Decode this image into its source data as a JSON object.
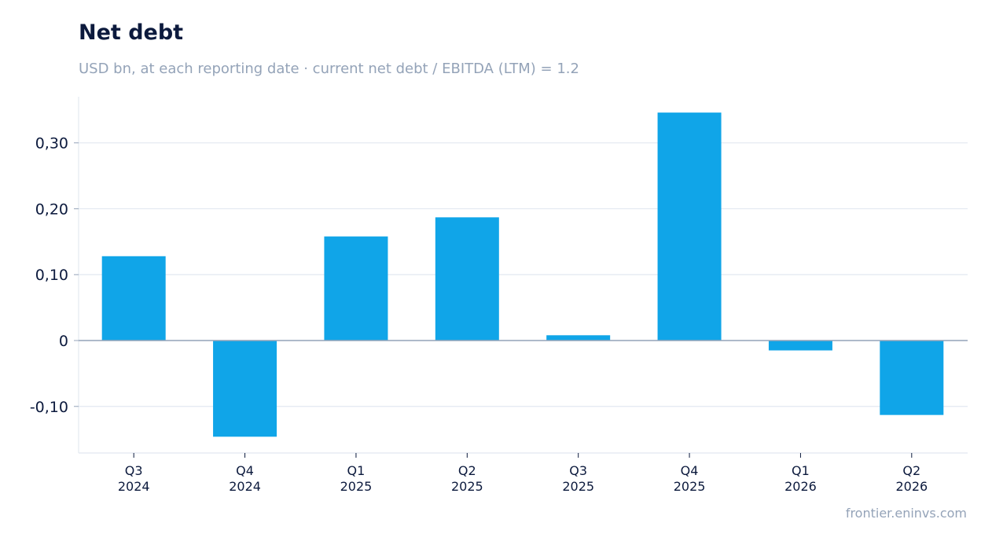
{
  "title": "Net debt",
  "subtitle": "USD bn, at each reporting date · current net debt / EBITDA (LTM) = 1.2",
  "source": "frontier.eninvs.com",
  "colors": {
    "bar": "#10a5e8",
    "grid": "#e2e8f0",
    "zero_line": "#94a3b8",
    "axis_spine": "#e2e8f0",
    "text": "#0c1a3d",
    "muted": "#94a3b8"
  },
  "chart_data": {
    "type": "bar",
    "categories": [
      [
        "Q3",
        "2024"
      ],
      [
        "Q4",
        "2024"
      ],
      [
        "Q1",
        "2025"
      ],
      [
        "Q2",
        "2025"
      ],
      [
        "Q3",
        "2025"
      ],
      [
        "Q4",
        "2025"
      ],
      [
        "Q1",
        "2026"
      ],
      [
        "Q2",
        "2026"
      ]
    ],
    "values": [
      0.128,
      -0.146,
      0.158,
      0.187,
      0.008,
      0.346,
      -0.015,
      -0.113
    ],
    "ylim": [
      -0.17,
      0.372
    ],
    "yticks": [
      -0.1,
      0,
      0.1,
      0.2,
      0.3
    ],
    "ytick_labels": [
      "-0,10",
      "0",
      "0,10",
      "0,20",
      "0,30"
    ],
    "grid": true,
    "legend": "none"
  }
}
